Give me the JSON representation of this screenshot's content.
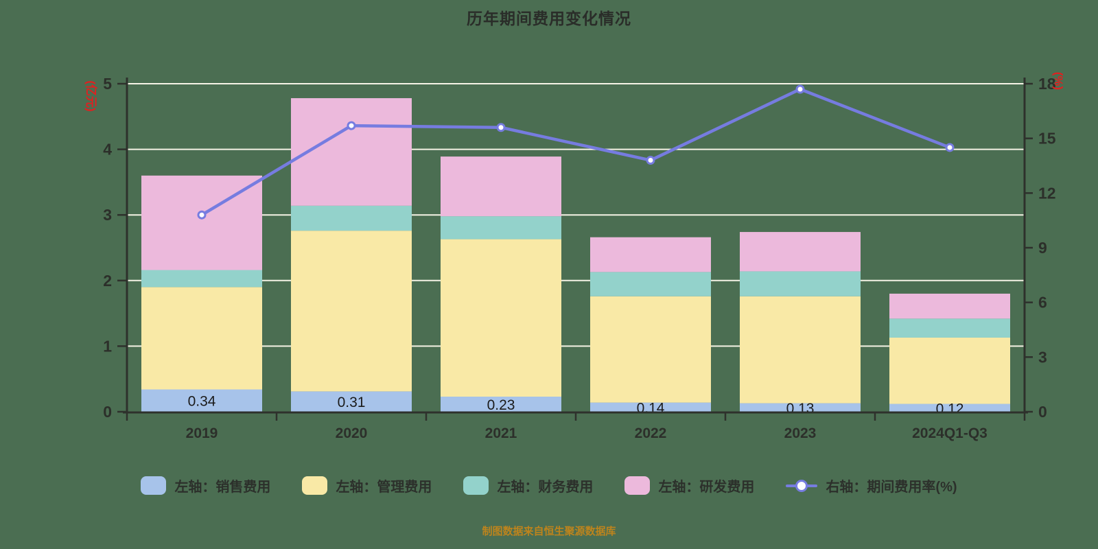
{
  "header": {
    "title": "历年期间费用变化情况"
  },
  "footer": {
    "source_note": "制图数据来自恒生聚源数据库"
  },
  "colors": {
    "background": "#4b6e52",
    "gridline": "#f6f3e6",
    "axis": "#2e312c",
    "tick_label": "#2c2f2a",
    "bar_label": "#1b1b1b",
    "axis_unit_label": "#e02020",
    "source_text": "#bd841d",
    "sales_bar": "#a7c3ea",
    "admin_bar": "#f9e9a6",
    "finance_bar": "#93d2cb",
    "rd_bar": "#ecb9dc",
    "ratio_line": "#767ce0",
    "marker_fill": "#fdfdff"
  },
  "chart_data": {
    "type": "bar",
    "subtype": "stacked-bar-with-line",
    "title": "历年期间费用变化情况",
    "categories": [
      "2019",
      "2020",
      "2021",
      "2022",
      "2023",
      "2024Q1-Q3"
    ],
    "series": [
      {
        "name": "左轴：销售费用",
        "type": "bar",
        "axis": "left",
        "color": "#a7c3ea",
        "values": [
          0.34,
          0.31,
          0.23,
          0.14,
          0.13,
          0.12
        ]
      },
      {
        "name": "左轴：管理费用",
        "type": "bar",
        "axis": "left",
        "color": "#f9e9a6",
        "values": [
          1.56,
          2.45,
          2.4,
          1.62,
          1.63,
          1.01
        ]
      },
      {
        "name": "左轴：财务费用",
        "type": "bar",
        "axis": "left",
        "color": "#93d2cb",
        "values": [
          0.26,
          0.38,
          0.35,
          0.37,
          0.38,
          0.29
        ]
      },
      {
        "name": "左轴：研发费用",
        "type": "bar",
        "axis": "left",
        "color": "#ecb9dc",
        "values": [
          1.44,
          1.64,
          0.91,
          0.53,
          0.6,
          0.38
        ]
      },
      {
        "name": "右轴：期间费用率(%)",
        "type": "line",
        "axis": "right",
        "color": "#767ce0",
        "values": [
          10.8,
          15.7,
          15.6,
          13.8,
          17.7,
          14.5
        ]
      }
    ],
    "bar_totals": [
      3.6,
      4.78,
      3.89,
      2.66,
      2.74,
      1.8
    ],
    "bar_labels": [
      "0.34",
      "0.31",
      "0.23",
      "0.14",
      "0.13",
      "0.12"
    ],
    "left_axis": {
      "label": "(亿元)",
      "min": 0,
      "max": 5,
      "step": 1,
      "ticks": [
        "0",
        "1",
        "2",
        "3",
        "4",
        "5"
      ]
    },
    "right_axis": {
      "label": "(%)",
      "min": 0,
      "max": 18,
      "step": 3,
      "ticks": [
        "0",
        "3",
        "6",
        "9",
        "12",
        "15",
        "18"
      ]
    },
    "grid": true,
    "legend_position": "bottom"
  }
}
